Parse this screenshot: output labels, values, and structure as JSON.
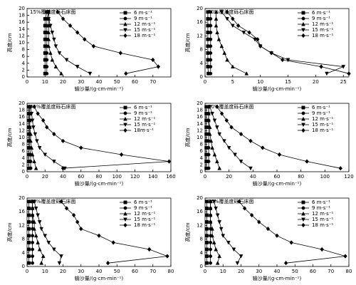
{
  "chart_data": [
    {
      "type": "line",
      "title": "15%覆盖度砾石床面",
      "xlabel": "输沙量/(g·cm-min⁻¹)",
      "ylabel": "高度/cm",
      "xlim": [
        0,
        80
      ],
      "xticks": [
        0,
        10,
        20,
        30,
        40,
        50,
        60,
        70
      ],
      "ylim": [
        0,
        20
      ],
      "yticks": [
        0,
        2,
        4,
        6,
        8,
        10,
        12,
        14,
        16,
        18,
        20
      ],
      "y": [
        1,
        3,
        5,
        7,
        9,
        11,
        13,
        15,
        17,
        19
      ],
      "series": [
        {
          "name": "6 m·s⁻¹",
          "color": "#000000",
          "marker": "square",
          "x": [
            10,
            10,
            10,
            10,
            10,
            10,
            10,
            10,
            10,
            11
          ]
        },
        {
          "name": "9 m·s⁻¹",
          "color": "#000000",
          "marker": "circle",
          "x": [
            11,
            11,
            11,
            11,
            11,
            11,
            11,
            11,
            11,
            12
          ]
        },
        {
          "name": "12 m·s⁻¹",
          "color": "#000000",
          "marker": "triangle-up",
          "x": [
            19,
            16,
            14,
            13,
            12,
            12,
            12,
            12,
            12,
            12
          ]
        },
        {
          "name": "15 m·s⁻¹",
          "color": "#000000",
          "marker": "triangle-down",
          "x": [
            35,
            28,
            22,
            18,
            16,
            15,
            14,
            13,
            12,
            12
          ]
        },
        {
          "name": "18 m·s⁻¹",
          "color": "#000000",
          "marker": "diamond",
          "x": [
            55,
            73,
            70,
            52,
            37,
            32,
            28,
            24,
            20,
            17
          ]
        }
      ]
    },
    {
      "type": "line",
      "title": "30%覆盖度砾石床面",
      "xlabel": "输沙量/(g·cm-min⁻¹)",
      "ylabel": "高度/cm",
      "xlim": [
        0,
        26
      ],
      "xticks": [
        0,
        5,
        10,
        15,
        20,
        25
      ],
      "ylim": [
        0,
        20
      ],
      "yticks": [
        0,
        4,
        8,
        12,
        16,
        20
      ],
      "y": [
        1,
        3,
        5,
        7,
        9,
        11,
        13,
        15,
        17,
        19
      ],
      "series": [
        {
          "name": "6 m·s⁻¹",
          "color": "#000000",
          "marker": "square",
          "x": [
            0.6,
            0.5,
            0.5,
            0.5,
            0.5,
            0.5,
            0.5,
            0.5,
            0.5,
            0.5
          ]
        },
        {
          "name": "9 m·s⁻¹",
          "color": "#000000",
          "marker": "circle",
          "x": [
            1,
            1,
            1,
            1,
            1,
            1,
            1,
            1,
            1,
            1
          ]
        },
        {
          "name": "12 m·s⁻¹",
          "color": "#000000",
          "marker": "triangle-up",
          "x": [
            7.5,
            5,
            4,
            3.5,
            3,
            2.5,
            2.2,
            2,
            2,
            2
          ]
        },
        {
          "name": "15 m·s⁻¹",
          "color": "#000000",
          "marker": "triangle-down",
          "x": [
            22,
            25,
            15,
            12,
            10,
            9,
            7,
            5,
            4,
            3
          ]
        },
        {
          "name": "18 m·s⁻¹",
          "color": "#000000",
          "marker": "diamond",
          "x": [
            26,
            21,
            14,
            12,
            10,
            9.5,
            8,
            6,
            5,
            4
          ]
        }
      ]
    },
    {
      "type": "line",
      "title": "45%覆盖度砾石床面",
      "xlabel": "输沙量/(g·cm-min⁻¹)",
      "ylabel": "高度/cm",
      "xlim": [
        0,
        160
      ],
      "xticks": [
        0,
        20,
        40,
        60,
        80,
        100,
        120,
        140,
        160
      ],
      "ylim": [
        0,
        20
      ],
      "yticks": [
        0,
        2,
        4,
        6,
        8,
        10,
        12,
        14,
        16,
        18,
        20
      ],
      "y": [
        1,
        3,
        5,
        7,
        9,
        11,
        13,
        15,
        17,
        19
      ],
      "series": [
        {
          "name": "6 m·s⁻¹",
          "color": "#000000",
          "marker": "square",
          "x": [
            2,
            2,
            2,
            2,
            2,
            2,
            2,
            2,
            2,
            2
          ]
        },
        {
          "name": "9 m·s⁻¹",
          "color": "#000000",
          "marker": "circle",
          "x": [
            4,
            4,
            4,
            3,
            3,
            3,
            3,
            3,
            3,
            3
          ]
        },
        {
          "name": "12 m·s⁻¹",
          "color": "#000000",
          "marker": "triangle-up",
          "x": [
            10,
            8,
            6,
            5,
            4,
            4,
            3,
            3,
            3,
            3
          ]
        },
        {
          "name": "15 m·s⁻¹",
          "color": "#000000",
          "marker": "triangle-down",
          "x": [
            42,
            30,
            20,
            14,
            11,
            9,
            7,
            6,
            5,
            4
          ]
        },
        {
          "name": "18m·s⁻¹",
          "color": "#000000",
          "marker": "diamond",
          "x": [
            40,
            158,
            105,
            60,
            40,
            30,
            22,
            18,
            12,
            8
          ]
        }
      ]
    },
    {
      "type": "line",
      "title": "50%覆盖度砾石床面",
      "xlabel": "输沙量/(g·cm-min⁻¹)",
      "ylabel": "高度/cm",
      "xlim": [
        0,
        120
      ],
      "xticks": [
        0,
        20,
        40,
        60,
        80,
        100,
        120
      ],
      "ylim": [
        0,
        20
      ],
      "yticks": [
        0,
        2,
        4,
        6,
        8,
        10,
        12,
        14,
        16,
        18,
        20
      ],
      "y": [
        1,
        3,
        5,
        7,
        9,
        11,
        13,
        15,
        17,
        19
      ],
      "series": [
        {
          "name": "6 m·s⁻¹",
          "color": "#000000",
          "marker": "square",
          "x": [
            1,
            1,
            1,
            1,
            1,
            1,
            1,
            1,
            1,
            1
          ]
        },
        {
          "name": "9 m·s⁻¹",
          "color": "#000000",
          "marker": "circle",
          "x": [
            3,
            3,
            3,
            3,
            3,
            3,
            3,
            3,
            3,
            3
          ]
        },
        {
          "name": "12 m·s⁻¹",
          "color": "#000000",
          "marker": "triangle-up",
          "x": [
            12,
            10,
            8,
            6,
            5,
            4,
            4,
            3,
            3,
            3
          ]
        },
        {
          "name": "15 m·s⁻¹",
          "color": "#000000",
          "marker": "triangle-down",
          "x": [
            38,
            30,
            25,
            20,
            16,
            12,
            10,
            8,
            6,
            4
          ]
        },
        {
          "name": "18 m·s⁻¹",
          "color": "#000000",
          "marker": "diamond",
          "x": [
            113,
            85,
            62,
            48,
            38,
            30,
            22,
            18,
            14,
            10
          ]
        }
      ]
    },
    {
      "type": "line",
      "title": "60%覆盖度砾石床面",
      "xlabel": "输沙量/(g·cm-min⁻¹)",
      "ylabel": "高度/cm",
      "xlim": [
        0,
        80
      ],
      "xticks": [
        0,
        10,
        20,
        30,
        40,
        50,
        60,
        70,
        80
      ],
      "ylim": [
        0,
        20
      ],
      "yticks": [
        0,
        4,
        8,
        12,
        16,
        20
      ],
      "y": [
        1,
        3,
        5,
        7,
        9,
        11,
        13,
        15,
        17,
        19
      ],
      "series": [
        {
          "name": "6 m·s⁻¹",
          "color": "#000000",
          "marker": "square",
          "x": [
            1,
            1,
            1,
            1,
            1,
            1,
            1,
            1,
            1,
            1
          ]
        },
        {
          "name": "9 m·s⁻¹",
          "color": "#000000",
          "marker": "circle",
          "x": [
            3,
            3,
            3,
            3,
            3,
            3,
            3,
            3,
            3,
            3
          ]
        },
        {
          "name": "12 m·s⁻¹",
          "color": "#000000",
          "marker": "triangle-up",
          "x": [
            8,
            9,
            7,
            6,
            5,
            4,
            4,
            3,
            3,
            3
          ]
        },
        {
          "name": "15 m·s⁻¹",
          "color": "#000000",
          "marker": "triangle-down",
          "x": [
            18,
            19,
            15,
            12,
            10,
            8,
            7,
            6,
            5,
            4
          ]
        },
        {
          "name": "18 m·s⁻¹",
          "color": "#000000",
          "marker": "diamond",
          "x": [
            45,
            78,
            68,
            48,
            40,
            30,
            28,
            26,
            22,
            19
          ]
        }
      ]
    },
    {
      "type": "line",
      "title": "75%覆盖度砾石床面",
      "xlabel": "输沙量/(g·cm-min⁻¹)",
      "ylabel": "高度/cm",
      "xlim": [
        0,
        80
      ],
      "xticks": [
        0,
        10,
        20,
        30,
        40,
        50,
        60,
        70,
        80
      ],
      "ylim": [
        0,
        20
      ],
      "yticks": [
        0,
        4,
        8,
        12,
        16,
        20
      ],
      "y": [
        1,
        3,
        5,
        7,
        9,
        11,
        13,
        15,
        17,
        19
      ],
      "series": [
        {
          "name": "6 m·s⁻¹",
          "color": "#000000",
          "marker": "square",
          "x": [
            1,
            1,
            1,
            1,
            1,
            1,
            1,
            1,
            1,
            1
          ]
        },
        {
          "name": "9 m·s⁻¹",
          "color": "#000000",
          "marker": "circle",
          "x": [
            3,
            3,
            3,
            3,
            3,
            3,
            3,
            3,
            3,
            3
          ]
        },
        {
          "name": "12 m·s⁻¹",
          "color": "#000000",
          "marker": "triangle-up",
          "x": [
            7,
            8,
            6,
            5,
            4,
            4,
            3,
            3,
            3,
            3
          ]
        },
        {
          "name": "15 m·s⁻¹",
          "color": "#000000",
          "marker": "triangle-down",
          "x": [
            18,
            20,
            16,
            13,
            10,
            9,
            8,
            7,
            6,
            5
          ]
        },
        {
          "name": "18 m·s⁻¹",
          "color": "#000000",
          "marker": "diamond",
          "x": [
            45,
            78,
            65,
            48,
            40,
            35,
            30,
            26,
            22,
            19
          ]
        }
      ]
    }
  ]
}
